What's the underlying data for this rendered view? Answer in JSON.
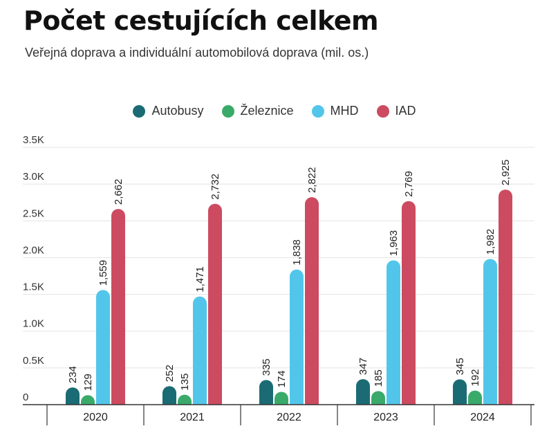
{
  "chart_data": {
    "type": "bar",
    "title": "Počet cestujících celkem",
    "subtitle": "Veřejná doprava a individuální automobilová doprava (mil. os.)",
    "xlabel": "",
    "ylabel": "",
    "categories": [
      "2020",
      "2021",
      "2022",
      "2023",
      "2024"
    ],
    "ylim": [
      0,
      3500
    ],
    "yticks": [
      0,
      500,
      1000,
      1500,
      2000,
      2500,
      3000,
      3500
    ],
    "ytick_labels": [
      "0",
      "0.5K",
      "1.0K",
      "1.5K",
      "2.0K",
      "2.5K",
      "3.0K",
      "3.5K"
    ],
    "grid": true,
    "legend_position": "top-center",
    "series": [
      {
        "name": "Autobusy",
        "color": "#1b6b74",
        "values": [
          234,
          252,
          335,
          347,
          345
        ],
        "labels": [
          "234",
          "252",
          "335",
          "347",
          "345"
        ]
      },
      {
        "name": "Železnice",
        "color": "#3aaa6a",
        "values": [
          129,
          135,
          174,
          185,
          192
        ],
        "labels": [
          "129",
          "135",
          "174",
          "185",
          "192"
        ]
      },
      {
        "name": "MHD",
        "color": "#52c6ea",
        "values": [
          1559,
          1471,
          1838,
          1963,
          1982
        ],
        "labels": [
          "1,559",
          "1,471",
          "1,838",
          "1,963",
          "1,982"
        ]
      },
      {
        "name": "IAD",
        "color": "#cc4b60",
        "values": [
          2662,
          2732,
          2822,
          2769,
          2925
        ],
        "labels": [
          "2,662",
          "2,732",
          "2,822",
          "2,769",
          "2,925"
        ]
      }
    ]
  }
}
